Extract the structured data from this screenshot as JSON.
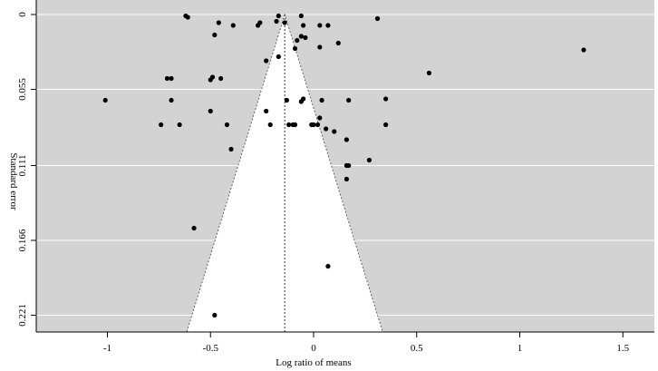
{
  "chart_data": {
    "type": "scatter",
    "title": "",
    "xlabel": "Log ratio of means",
    "ylabel": "Standard error",
    "xlim": [
      -1.35,
      1.65
    ],
    "ylim": [
      0.221,
      0
    ],
    "xticks": [
      -1,
      -0.5,
      0,
      0.5,
      1,
      1.5
    ],
    "xtick_labels": [
      "-1",
      "-0.5",
      "0",
      "0.5",
      "1",
      "1.5"
    ],
    "yticks": [
      0,
      0.055,
      0.111,
      0.166,
      0.221
    ],
    "ytick_labels": [
      "0",
      "0.055",
      "0.111",
      "0.166",
      "0.221"
    ],
    "grid": "horizontal",
    "background": "#d3d3d3",
    "point_color": "#000000",
    "funnel": {
      "center": -0.14,
      "base_se": 0.221,
      "base_half_width": 0.45
    },
    "x": [
      -0.62,
      -0.61,
      -0.46,
      -0.39,
      -0.27,
      -0.26,
      -0.18,
      -0.17,
      -0.14,
      -0.05,
      -0.06,
      0.03,
      0.07,
      0.31,
      -0.48,
      -0.08,
      -0.06,
      -0.04,
      0.03,
      0.12,
      -0.09,
      -0.23,
      -0.17,
      1.31,
      0.56,
      -0.71,
      -0.69,
      -0.49,
      -0.5,
      -0.45,
      -1.01,
      -0.69,
      -0.13,
      -0.05,
      -0.06,
      0.04,
      0.17,
      0.35,
      -0.5,
      -0.23,
      0.03,
      -0.74,
      -0.65,
      -0.42,
      -0.21,
      -0.12,
      -0.1,
      -0.09,
      -0.01,
      0.0,
      0.02,
      0.06,
      0.1,
      0.16,
      0.35,
      0.16,
      -0.4,
      0.27,
      0.17,
      0.16,
      -0.58,
      0.07,
      -0.48
    ],
    "y": [
      0.001,
      0.002,
      0.006,
      0.008,
      0.008,
      0.006,
      0.005,
      0.001,
      0.006,
      0.008,
      0.001,
      0.008,
      0.008,
      0.003,
      0.015,
      0.019,
      0.016,
      0.017,
      0.024,
      0.021,
      0.025,
      0.034,
      0.031,
      0.026,
      0.043,
      0.047,
      0.047,
      0.046,
      0.048,
      0.047,
      0.063,
      0.063,
      0.063,
      0.062,
      0.064,
      0.063,
      0.063,
      0.062,
      0.071,
      0.071,
      0.076,
      0.081,
      0.081,
      0.081,
      0.081,
      0.081,
      0.081,
      0.081,
      0.081,
      0.081,
      0.081,
      0.084,
      0.086,
      0.092,
      0.081,
      0.111,
      0.099,
      0.107,
      0.111,
      0.121,
      0.157,
      0.185,
      0.221
    ]
  }
}
